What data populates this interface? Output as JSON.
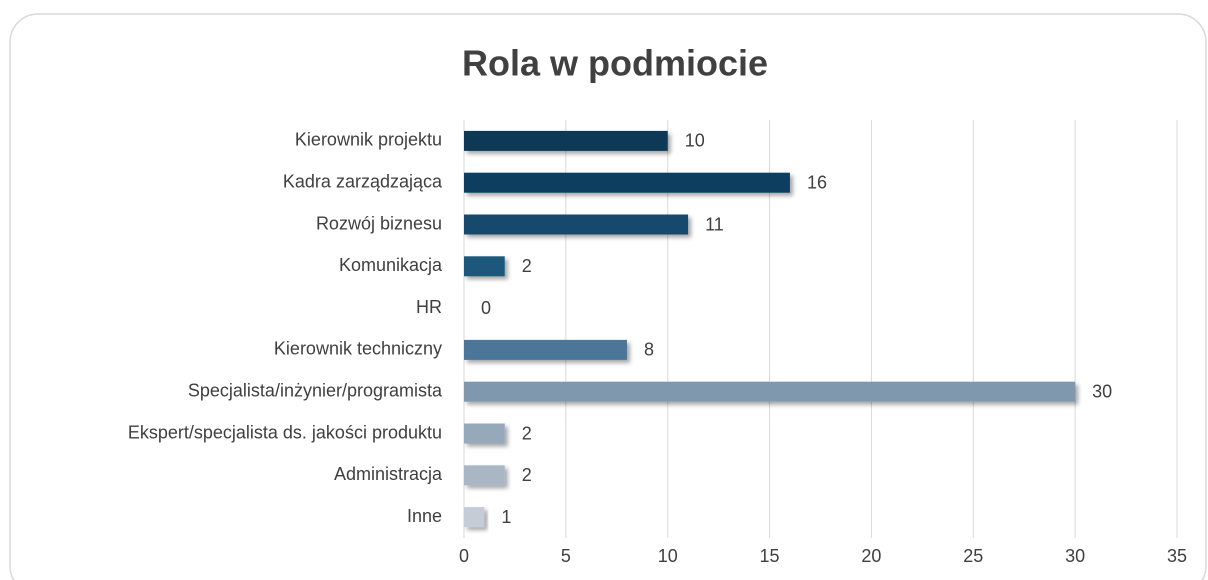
{
  "chart_data": {
    "type": "barh",
    "title": "Rola w podmiocie",
    "categories": [
      "Kierownik projektu",
      "Kadra zarządzająca",
      "Rozwój biznesu",
      "Komunikacja",
      "HR",
      "Kierownik techniczny",
      "Specjalista/inżynier/programista",
      "Ekspert/specjalista ds. jakości produktu",
      "Administracja",
      "Inne"
    ],
    "values": [
      10,
      16,
      11,
      2,
      0,
      8,
      30,
      2,
      2,
      1
    ],
    "colors": [
      "#0d3856",
      "#0f3e5f",
      "#164a6c",
      "#1f587c",
      "#2b6487",
      "#4b7699",
      "#7f98ae",
      "#96a9bb",
      "#a9b7c5",
      "#c4cdd7"
    ],
    "xlim": [
      0,
      35
    ],
    "xticks": [
      0,
      5,
      10,
      15,
      20,
      25,
      30,
      35
    ],
    "grid": true
  }
}
